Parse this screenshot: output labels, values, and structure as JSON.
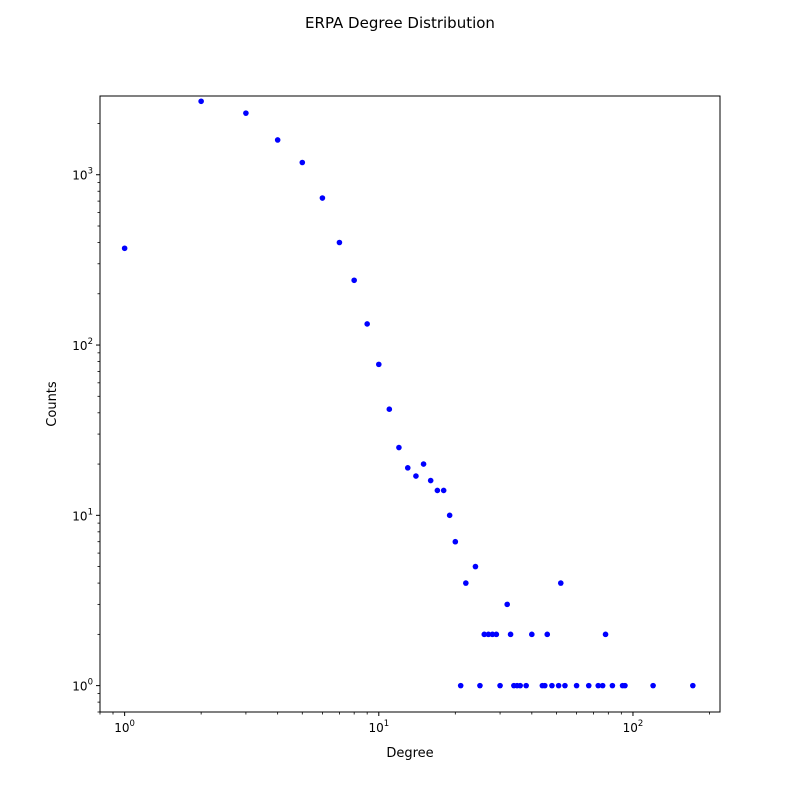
{
  "chart_data": {
    "type": "scatter",
    "title": "ERPA Degree Distribution",
    "xlabel": "Degree",
    "ylabel": "Counts",
    "xscale": "log",
    "yscale": "log",
    "xlim": [
      0.8,
      220
    ],
    "ylim": [
      0.7,
      2900
    ],
    "grid": false,
    "marker_color": "#0000ff",
    "x_ticks": [
      {
        "value": 1,
        "base": "10",
        "exp": "0"
      },
      {
        "value": 10,
        "base": "10",
        "exp": "1"
      },
      {
        "value": 100,
        "base": "10",
        "exp": "2"
      }
    ],
    "y_ticks": [
      {
        "value": 1,
        "base": "10",
        "exp": "0"
      },
      {
        "value": 10,
        "base": "10",
        "exp": "1"
      },
      {
        "value": 100,
        "base": "10",
        "exp": "2"
      },
      {
        "value": 1000,
        "base": "10",
        "exp": "3"
      }
    ],
    "points": [
      [
        1,
        370
      ],
      [
        2,
        2700
      ],
      [
        3,
        2300
      ],
      [
        4,
        1600
      ],
      [
        5,
        1180
      ],
      [
        6,
        730
      ],
      [
        7,
        400
      ],
      [
        8,
        240
      ],
      [
        9,
        133
      ],
      [
        10,
        77
      ],
      [
        11,
        42
      ],
      [
        12,
        25
      ],
      [
        13,
        19
      ],
      [
        14,
        17
      ],
      [
        15,
        20
      ],
      [
        16,
        16
      ],
      [
        17,
        14
      ],
      [
        18,
        14
      ],
      [
        19,
        10
      ],
      [
        20,
        7
      ],
      [
        21,
        1
      ],
      [
        22,
        4
      ],
      [
        24,
        5
      ],
      [
        25,
        1
      ],
      [
        26,
        2
      ],
      [
        27,
        2
      ],
      [
        28,
        2
      ],
      [
        29,
        2
      ],
      [
        30,
        1
      ],
      [
        32,
        3
      ],
      [
        33,
        2
      ],
      [
        34,
        1
      ],
      [
        35,
        1
      ],
      [
        36,
        1
      ],
      [
        38,
        1
      ],
      [
        40,
        2
      ],
      [
        44,
        1
      ],
      [
        45,
        1
      ],
      [
        46,
        2
      ],
      [
        48,
        1
      ],
      [
        51,
        1
      ],
      [
        52,
        4
      ],
      [
        54,
        1
      ],
      [
        60,
        1
      ],
      [
        67,
        1
      ],
      [
        73,
        1
      ],
      [
        76,
        1
      ],
      [
        78,
        2
      ],
      [
        83,
        1
      ],
      [
        91,
        1
      ],
      [
        93,
        1
      ],
      [
        120,
        1
      ],
      [
        172,
        1
      ]
    ]
  }
}
